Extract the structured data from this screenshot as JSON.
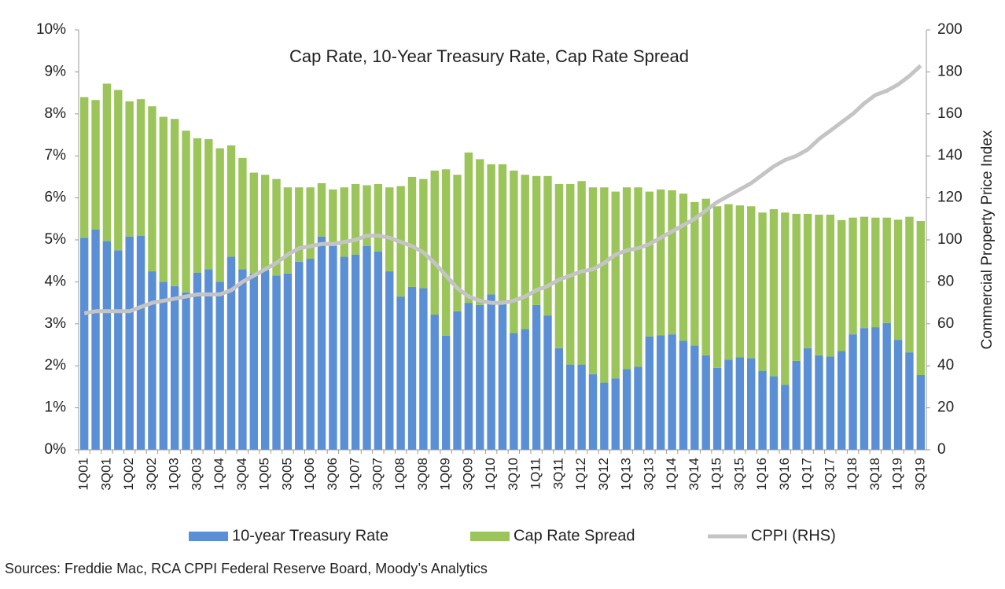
{
  "chart_data": {
    "type": "bar",
    "stacked": true,
    "title": "Cap Rate, 10-Year Treasury Rate, Cap Rate Spread",
    "y2_label": "Commercial Property Price Index",
    "source": "Sources: Freddie Mac, RCA CPPI Federal Reserve Board, Moody’s Analytics",
    "categories": [
      "1Q01",
      null,
      "3Q01",
      null,
      "1Q02",
      null,
      "3Q02",
      null,
      "1Q03",
      null,
      "3Q03",
      null,
      "1Q04",
      null,
      "3Q04",
      null,
      "1Q05",
      null,
      "3Q05",
      null,
      "1Q06",
      null,
      "3Q06",
      null,
      "1Q07",
      null,
      "3Q07",
      null,
      "1Q08",
      null,
      "3Q08",
      null,
      "1Q09",
      null,
      "3Q09",
      null,
      "1Q10",
      null,
      "3Q10",
      null,
      "1Q11",
      null,
      "3Q11",
      null,
      "1Q12",
      null,
      "3Q12",
      null,
      "1Q13",
      null,
      "3Q13",
      null,
      "1Q14",
      null,
      "3Q14",
      null,
      "1Q15",
      null,
      "3Q15",
      null,
      "1Q16",
      null,
      "3Q16",
      null,
      "1Q17",
      null,
      "3Q17",
      null,
      "1Q18",
      null,
      "3Q18",
      null,
      "1Q19",
      null,
      "3Q19"
    ],
    "series": [
      {
        "name": "10-year Treasury Rate",
        "color": "#5b8fd5",
        "values": [
          5.05,
          5.25,
          4.97,
          4.75,
          5.08,
          5.1,
          4.25,
          4.0,
          3.9,
          3.75,
          4.22,
          4.3,
          4.0,
          4.6,
          4.3,
          4.2,
          4.28,
          4.15,
          4.2,
          4.48,
          4.55,
          5.08,
          4.85,
          4.6,
          4.65,
          4.85,
          4.72,
          4.25,
          3.65,
          3.88,
          3.85,
          3.22,
          2.72,
          3.3,
          3.5,
          3.45,
          3.7,
          3.55,
          2.78,
          2.88,
          3.45,
          3.2,
          2.42,
          2.03,
          2.03,
          1.8,
          1.6,
          1.7,
          1.92,
          1.98,
          2.7,
          2.73,
          2.75,
          2.6,
          2.48,
          2.25,
          1.95,
          2.15,
          2.2,
          2.18,
          1.88,
          1.75,
          1.55,
          2.12,
          2.42,
          2.25,
          2.22,
          2.35,
          2.75,
          2.9,
          2.92,
          3.02,
          2.62,
          2.32,
          1.78
        ]
      },
      {
        "name": "Cap Rate Spread",
        "color": "#9bc55a",
        "values": [
          3.35,
          3.08,
          3.75,
          3.82,
          3.22,
          3.25,
          3.93,
          3.93,
          3.98,
          3.85,
          3.2,
          3.1,
          3.18,
          2.65,
          2.65,
          2.4,
          2.27,
          2.3,
          2.05,
          1.77,
          1.7,
          1.27,
          1.35,
          1.65,
          1.68,
          1.45,
          1.61,
          2.0,
          2.63,
          2.62,
          2.6,
          3.43,
          3.96,
          3.25,
          3.58,
          3.47,
          3.1,
          3.25,
          3.87,
          3.67,
          3.07,
          3.32,
          3.91,
          4.3,
          4.37,
          4.45,
          4.65,
          4.45,
          4.33,
          4.27,
          3.45,
          3.47,
          3.43,
          3.5,
          3.42,
          3.73,
          3.85,
          3.7,
          3.62,
          3.62,
          3.77,
          3.98,
          4.1,
          3.5,
          3.2,
          3.35,
          3.38,
          3.12,
          2.78,
          2.65,
          2.61,
          2.51,
          2.86,
          3.23,
          3.67
        ]
      },
      {
        "name": "CPPI (RHS)",
        "color": "#c4c4c4",
        "type": "line",
        "axis": "y2",
        "values": [
          65,
          66,
          66,
          66,
          66,
          68,
          70,
          71,
          72,
          73,
          74,
          74,
          74,
          76,
          80,
          83,
          86,
          89,
          93,
          96,
          97,
          98,
          98,
          99,
          100,
          102,
          102,
          101,
          99,
          97,
          94,
          89,
          83,
          77,
          73,
          71,
          70,
          70,
          71,
          73,
          76,
          78,
          81,
          83,
          85,
          86,
          89,
          93,
          95,
          96,
          98,
          101,
          104,
          107,
          110,
          114,
          118,
          121,
          124,
          127,
          131,
          135,
          138,
          140,
          143,
          148,
          152,
          156,
          160,
          165,
          169,
          171,
          174,
          178,
          183
        ]
      }
    ],
    "ylim": [
      0,
      10
    ],
    "yticks": [
      {
        "value": 0,
        "label": "0%"
      },
      {
        "value": 1,
        "label": "1%"
      },
      {
        "value": 2,
        "label": "2%"
      },
      {
        "value": 3,
        "label": "3%"
      },
      {
        "value": 4,
        "label": "4%"
      },
      {
        "value": 5,
        "label": "5%"
      },
      {
        "value": 6,
        "label": "6%"
      },
      {
        "value": 7,
        "label": "7%"
      },
      {
        "value": 8,
        "label": "8%"
      },
      {
        "value": 9,
        "label": "9%"
      },
      {
        "value": 10,
        "label": "10%"
      }
    ],
    "y2lim": [
      0,
      200
    ],
    "y2ticks": [
      0,
      20,
      40,
      60,
      80,
      100,
      120,
      140,
      160,
      180,
      200
    ],
    "legend": "bottom"
  }
}
